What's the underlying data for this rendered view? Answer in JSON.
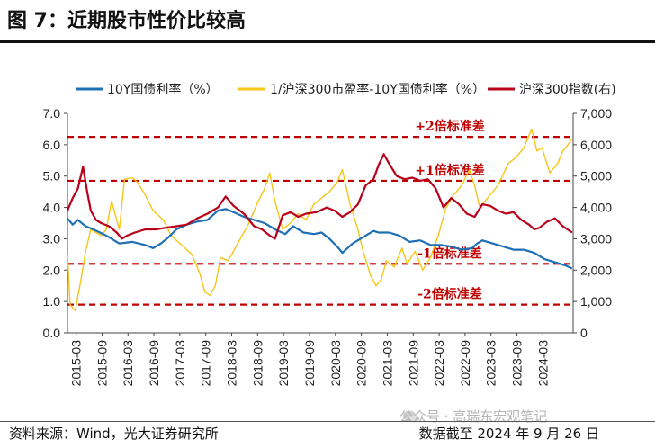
{
  "header": {
    "title": "图 7：近期股市性价比较高"
  },
  "footer": {
    "source": "资料来源：Wind，光大证券研究所",
    "cutoff": "数据截至 2024 年 9 月 26 日"
  },
  "watermark": {
    "text": "公众号 · 高瑞东宏观笔记"
  },
  "chart_data": {
    "type": "line",
    "x_ticks": [
      "2015-03",
      "2015-09",
      "2016-03",
      "2016-09",
      "2017-03",
      "2017-09",
      "2018-03",
      "2018-09",
      "2019-03",
      "2019-09",
      "2020-03",
      "2020-09",
      "2021-03",
      "2021-09",
      "2022-03",
      "2022-09",
      "2023-03",
      "2023-09",
      "2024-03"
    ],
    "x_range": [
      2015.0,
      2024.75
    ],
    "y_left": {
      "ylim": [
        0,
        7
      ],
      "ticks": [
        "0.0",
        "1.0",
        "2.0",
        "3.0",
        "4.0",
        "5.0",
        "6.0",
        "7.0"
      ]
    },
    "y_right": {
      "ylim": [
        0,
        7000
      ],
      "ticks": [
        "0",
        "1,000",
        "2,000",
        "3,000",
        "4,000",
        "5,000",
        "6,000",
        "7,000"
      ]
    },
    "series": [
      {
        "name": "10Y国债利率（%）",
        "axis": "left",
        "color": "#1f6fb5",
        "x": [
          2015.0,
          2015.1,
          2015.2,
          2015.35,
          2015.5,
          2015.75,
          2016.0,
          2016.25,
          2016.5,
          2016.65,
          2016.8,
          2016.95,
          2017.1,
          2017.3,
          2017.5,
          2017.7,
          2017.9,
          2018.05,
          2018.2,
          2018.4,
          2018.6,
          2018.8,
          2019.0,
          2019.2,
          2019.35,
          2019.55,
          2019.75,
          2019.9,
          2020.05,
          2020.2,
          2020.3,
          2020.5,
          2020.7,
          2020.9,
          2021.0,
          2021.2,
          2021.4,
          2021.6,
          2021.8,
          2022.0,
          2022.2,
          2022.4,
          2022.6,
          2022.8,
          2022.9,
          2023.0,
          2023.2,
          2023.4,
          2023.6,
          2023.8,
          2024.0,
          2024.2,
          2024.4,
          2024.6,
          2024.73
        ],
        "y": [
          3.65,
          3.45,
          3.6,
          3.4,
          3.3,
          3.1,
          2.85,
          2.9,
          2.8,
          2.7,
          2.85,
          3.05,
          3.3,
          3.45,
          3.55,
          3.6,
          3.9,
          3.95,
          3.85,
          3.7,
          3.6,
          3.5,
          3.3,
          3.15,
          3.4,
          3.2,
          3.15,
          3.2,
          3.0,
          2.75,
          2.55,
          2.85,
          3.05,
          3.25,
          3.2,
          3.2,
          3.1,
          2.9,
          2.95,
          2.8,
          2.8,
          2.75,
          2.65,
          2.7,
          2.85,
          2.95,
          2.85,
          2.75,
          2.65,
          2.65,
          2.55,
          2.35,
          2.25,
          2.15,
          2.05
        ]
      },
      {
        "name": "1/沪深300市盈率-10Y国债利率（%）",
        "axis": "left",
        "color": "#f5c518",
        "x": [
          2015.0,
          2015.05,
          2015.15,
          2015.25,
          2015.35,
          2015.45,
          2015.55,
          2015.65,
          2015.75,
          2015.85,
          2016.0,
          2016.1,
          2016.25,
          2016.35,
          2016.5,
          2016.65,
          2016.85,
          2017.0,
          2017.2,
          2017.4,
          2017.55,
          2017.65,
          2017.75,
          2017.85,
          2017.95,
          2018.1,
          2018.3,
          2018.5,
          2018.65,
          2018.8,
          2018.9,
          2019.0,
          2019.15,
          2019.3,
          2019.45,
          2019.6,
          2019.75,
          2019.9,
          2020.05,
          2020.2,
          2020.3,
          2020.45,
          2020.6,
          2020.7,
          2020.85,
          2020.95,
          2021.05,
          2021.15,
          2021.3,
          2021.45,
          2021.55,
          2021.7,
          2021.85,
          2022.0,
          2022.15,
          2022.3,
          2022.45,
          2022.6,
          2022.75,
          2022.85,
          2022.95,
          2023.1,
          2023.3,
          2023.5,
          2023.65,
          2023.8,
          2023.95,
          2024.05,
          2024.15,
          2024.3,
          2024.45,
          2024.55,
          2024.65,
          2024.73
        ],
        "y": [
          2.5,
          0.9,
          0.7,
          1.6,
          2.6,
          3.3,
          3.2,
          3.1,
          3.3,
          4.2,
          3.3,
          4.9,
          4.95,
          4.8,
          4.4,
          3.9,
          3.6,
          3.1,
          2.8,
          2.5,
          1.9,
          1.3,
          1.2,
          1.5,
          2.4,
          2.3,
          2.9,
          3.5,
          4.1,
          4.6,
          5.1,
          4.2,
          3.3,
          3.5,
          3.8,
          3.6,
          4.1,
          4.3,
          4.5,
          4.8,
          5.2,
          4.1,
          3.3,
          2.6,
          1.8,
          1.5,
          1.7,
          2.3,
          2.1,
          2.7,
          2.2,
          2.6,
          2.0,
          2.4,
          3.1,
          4.0,
          4.4,
          4.7,
          5.2,
          4.7,
          4.0,
          4.3,
          4.7,
          5.4,
          5.6,
          5.9,
          6.5,
          5.8,
          5.9,
          5.1,
          5.4,
          5.8,
          6.0,
          6.2
        ]
      },
      {
        "name": "沪深300指数(右)",
        "axis": "right",
        "color": "#b8001a",
        "x": [
          2015.0,
          2015.1,
          2015.2,
          2015.3,
          2015.38,
          2015.45,
          2015.55,
          2015.65,
          2015.8,
          2015.95,
          2016.05,
          2016.15,
          2016.3,
          2016.5,
          2016.7,
          2016.9,
          2017.1,
          2017.3,
          2017.5,
          2017.7,
          2017.9,
          2018.05,
          2018.2,
          2018.4,
          2018.6,
          2018.75,
          2018.9,
          2019.0,
          2019.15,
          2019.3,
          2019.45,
          2019.6,
          2019.8,
          2020.0,
          2020.15,
          2020.3,
          2020.45,
          2020.6,
          2020.75,
          2020.9,
          2021.0,
          2021.1,
          2021.2,
          2021.35,
          2021.5,
          2021.65,
          2021.8,
          2021.95,
          2022.1,
          2022.25,
          2022.4,
          2022.55,
          2022.7,
          2022.85,
          2023.0,
          2023.15,
          2023.3,
          2023.45,
          2023.6,
          2023.75,
          2023.9,
          2024.0,
          2024.1,
          2024.25,
          2024.4,
          2024.55,
          2024.73
        ],
        "y": [
          3900,
          4300,
          4600,
          5300,
          4500,
          3900,
          3600,
          3500,
          3400,
          3200,
          3000,
          3100,
          3200,
          3300,
          3300,
          3350,
          3400,
          3450,
          3650,
          3800,
          4000,
          4350,
          4050,
          3800,
          3400,
          3300,
          3100,
          3000,
          3750,
          3850,
          3700,
          3800,
          3850,
          4000,
          3900,
          3700,
          3850,
          4100,
          4700,
          4900,
          5350,
          5700,
          5400,
          5000,
          4900,
          4950,
          4850,
          4900,
          4600,
          4000,
          4300,
          4100,
          3800,
          3700,
          4100,
          4050,
          3900,
          3800,
          3850,
          3600,
          3450,
          3300,
          3350,
          3550,
          3650,
          3400,
          3200
        ]
      }
    ],
    "reference_lines": [
      {
        "label": "+2倍标准差",
        "value": 6.25
      },
      {
        "label": "+1倍标准差",
        "value": 4.85
      },
      {
        "label": "-1倍标准差",
        "value": 2.2
      },
      {
        "label": "-2倍标准差",
        "value": 0.9
      }
    ]
  }
}
